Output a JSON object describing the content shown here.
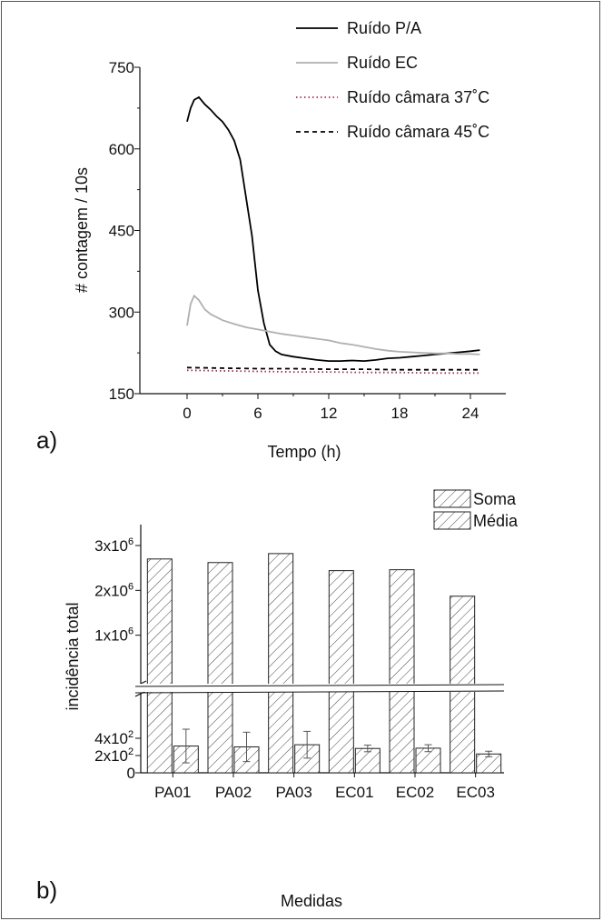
{
  "chart_data": [
    {
      "type": "line",
      "panel_label": "a)",
      "xlabel": "Tempo (h)",
      "ylabel": "# contagem / 10s",
      "xlim": [
        -4,
        27
      ],
      "ylim": [
        150,
        750
      ],
      "xticks": [
        0,
        6,
        12,
        18,
        24
      ],
      "yticks": [
        150,
        300,
        450,
        600,
        750
      ],
      "legend": "top-right",
      "series": [
        {
          "name": "Ruído P/A",
          "style": "solid",
          "color": "#000000",
          "x": [
            0,
            0.3,
            0.6,
            1,
            1.5,
            2,
            2.5,
            3,
            3.5,
            4,
            4.5,
            5,
            5.5,
            6,
            6.5,
            7,
            7.5,
            8,
            9,
            10,
            11,
            12,
            13,
            14,
            15,
            16,
            17,
            18,
            19,
            20,
            21,
            22,
            23,
            24,
            24.8
          ],
          "y": [
            650,
            675,
            690,
            695,
            682,
            672,
            660,
            650,
            635,
            615,
            580,
            510,
            440,
            340,
            280,
            240,
            228,
            222,
            218,
            215,
            212,
            210,
            210,
            211,
            210,
            212,
            215,
            216,
            218,
            220,
            222,
            224,
            226,
            228,
            230
          ]
        },
        {
          "name": "Ruído EC",
          "style": "solid",
          "color": "#b0b0b0",
          "x": [
            0,
            0.3,
            0.6,
            1,
            1.5,
            2,
            3,
            4,
            5,
            6,
            7,
            8,
            9,
            10,
            11,
            12,
            13,
            14,
            15,
            16,
            17,
            18,
            19,
            20,
            21,
            22,
            23,
            24,
            24.8
          ],
          "y": [
            275,
            315,
            330,
            322,
            305,
            296,
            285,
            278,
            272,
            268,
            264,
            260,
            257,
            254,
            251,
            248,
            243,
            240,
            236,
            232,
            229,
            227,
            226,
            225,
            224,
            224,
            223,
            223,
            222
          ]
        },
        {
          "name": "Ruído câmara 37˚C",
          "style": "dotted",
          "color": "#a03050",
          "x": [
            0,
            3,
            6,
            9,
            12,
            15,
            18,
            21,
            24,
            24.8
          ],
          "y": [
            193,
            192,
            191,
            190,
            190,
            189,
            189,
            188,
            188,
            188
          ]
        },
        {
          "name": "Ruído câmara 45˚C",
          "style": "dashed",
          "color": "#000000",
          "x": [
            0,
            3,
            6,
            9,
            12,
            15,
            18,
            21,
            24,
            24.8
          ],
          "y": [
            198,
            197,
            196,
            196,
            195,
            195,
            194,
            194,
            194,
            194
          ]
        }
      ]
    },
    {
      "type": "bar",
      "panel_label": "b)",
      "xlabel": "Medidas",
      "ylabel": "incidência total",
      "categories": [
        "PA01",
        "PA02",
        "PA03",
        "EC01",
        "EC02",
        "EC03"
      ],
      "broken_axis": true,
      "legend": "top-right",
      "upper_yticks": [
        "1x10",
        "2x10",
        "3x10"
      ],
      "upper_tick_exponent": "6",
      "lower_yticks": [
        "0",
        "2x10",
        "4x10"
      ],
      "lower_tick_exponent": "2",
      "series": [
        {
          "name": "Soma",
          "values": [
            2700000,
            2620000,
            2820000,
            2440000,
            2460000,
            1870000
          ]
        },
        {
          "name": "Média",
          "values": [
            310,
            300,
            325,
            282,
            285,
            218
          ],
          "errors": [
            195,
            170,
            155,
            38,
            40,
            32
          ]
        }
      ]
    }
  ]
}
